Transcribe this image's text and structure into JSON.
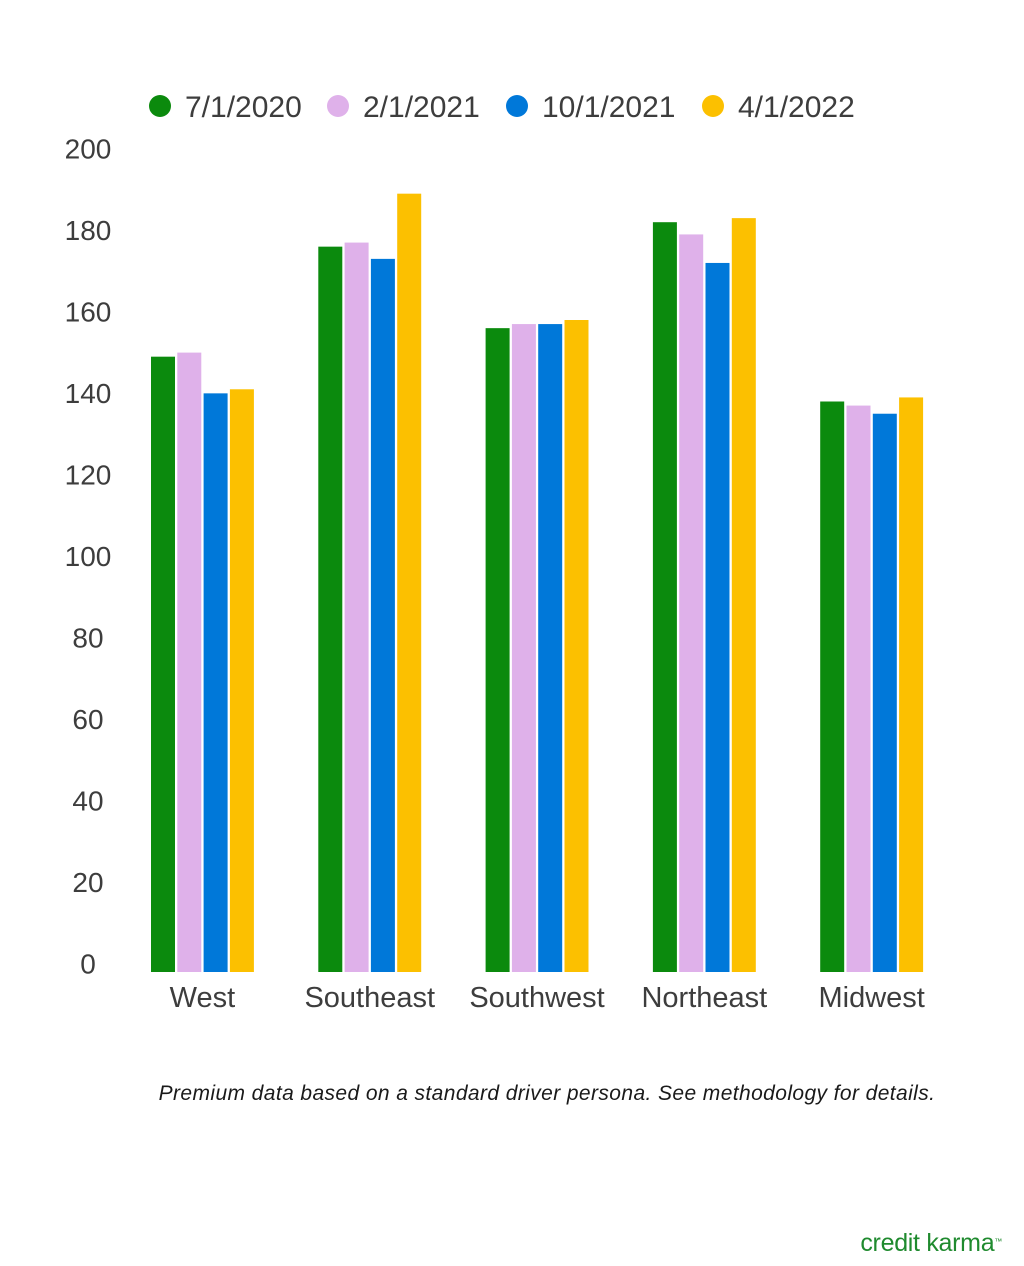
{
  "chart_data": {
    "type": "bar",
    "categories": [
      "West",
      "Southeast",
      "Southwest",
      "Northeast",
      "Midwest"
    ],
    "series": [
      {
        "name": "7/1/2020",
        "color": "#0b8a0d",
        "values": [
          151,
          178,
          158,
          184,
          140
        ]
      },
      {
        "name": "2/1/2021",
        "color": "#dfb1ea",
        "values": [
          152,
          179,
          159,
          181,
          139
        ]
      },
      {
        "name": "10/1/2021",
        "color": "#0078d9",
        "values": [
          142,
          175,
          159,
          174,
          137
        ]
      },
      {
        "name": "4/1/2022",
        "color": "#fcc000",
        "values": [
          143,
          191,
          160,
          185,
          141
        ]
      }
    ],
    "ylim": [
      0,
      200
    ],
    "yticks": [
      0,
      20,
      40,
      60,
      80,
      100,
      120,
      140,
      160,
      180,
      200
    ],
    "grid": false,
    "legend": "top",
    "title": "",
    "xlabel": "",
    "ylabel": ""
  },
  "footnote": "Premium data based on a standard driver persona. See methodology for details.",
  "brand": {
    "name": "credit karma",
    "mark": "™"
  }
}
